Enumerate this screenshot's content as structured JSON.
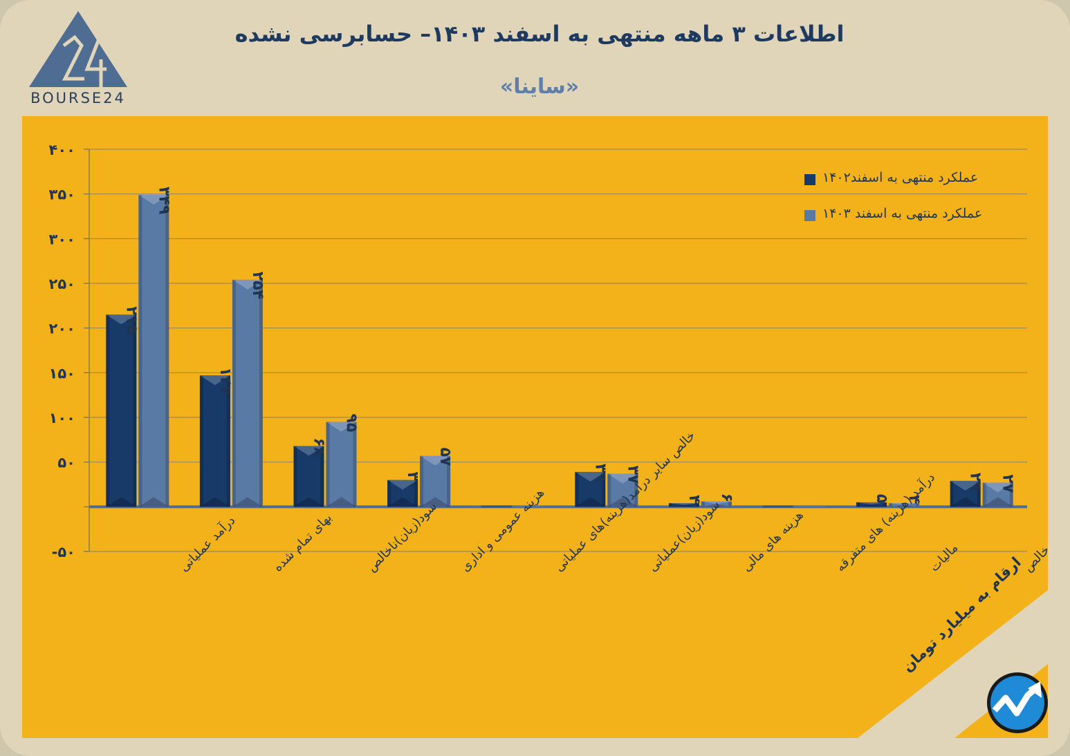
{
  "header": {
    "logo_text": "BOURSE24",
    "title": "اطلاعات ۳ ماهه منتهی به اسفند ۱۴۰۳– حسابرسی نشده",
    "subtitle": "«ساینا»"
  },
  "units_note": "ارقام به میلیارد تومان",
  "colors": {
    "background": "#e0d5b8",
    "panel": "#f4b21a",
    "series_1402": "#173a68",
    "series_1403": "#5a7aa6",
    "text": "#1f3450"
  },
  "icons": {
    "logo": "bourse24-triangle-logo",
    "corner": "trend-up-circle-icon"
  },
  "chart_data": {
    "type": "bar",
    "categories": [
      "درآمد عملیاتی",
      "بهای تمام شده",
      "سود(زیان)ناخالص",
      "هزینه عمومی و اداری",
      "خالص سایر درامد(هزینه)های عملیاتی",
      "سود(زیان)عملیاتی",
      "هزینه های مالی",
      "درآمد (هزینه) های متفرقه",
      "مالیات",
      "سود(زیان) خالص"
    ],
    "series": [
      {
        "name": "عملکرد منتهی به اسفند۱۴۰۲",
        "values": [
          215,
          147,
          68,
          30,
          0,
          39,
          4,
          0,
          5,
          29
        ],
        "labels": [
          "۲۱۵",
          "۱۴۷",
          "۶۸",
          "۳۰",
          "",
          "۳۹",
          "۴",
          "",
          "۵",
          "۲۹"
        ]
      },
      {
        "name": "عملکرد منتهی به اسفند ۱۴۰۳",
        "values": [
          349,
          254,
          95,
          57,
          0,
          37,
          6,
          0,
          4,
          27
        ],
        "labels": [
          "۳۴۹",
          "۲۵۴",
          "۹۵",
          "۵۷",
          "",
          "۳۷",
          "۶",
          "",
          "۴",
          "۲۷"
        ]
      }
    ],
    "ylim": [
      -50,
      400
    ],
    "yticks": [
      -50,
      0,
      50,
      100,
      150,
      200,
      250,
      300,
      350,
      400
    ],
    "ytick_labels": [
      "-۵۰",
      "",
      "۵۰",
      "۱۰۰",
      "۱۵۰",
      "۲۰۰",
      "۲۵۰",
      "۳۰۰",
      "۳۵۰",
      "۴۰۰"
    ],
    "grid": true,
    "legend_position": "top-right",
    "title": "",
    "xlabel": "",
    "ylabel": ""
  }
}
